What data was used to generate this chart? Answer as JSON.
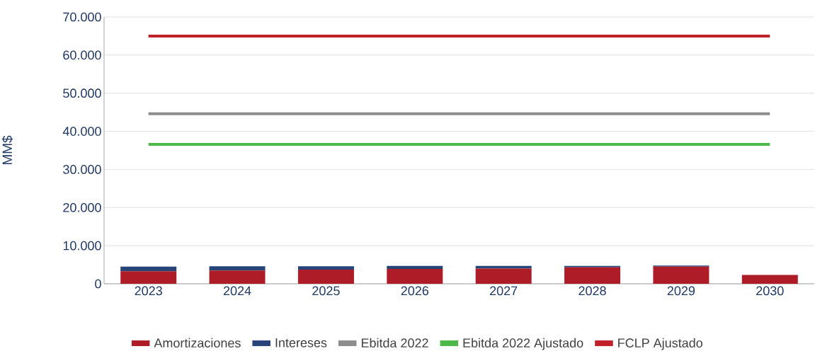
{
  "chart_data": {
    "type": "bar",
    "ylabel": "MM$",
    "categories": [
      "2023",
      "2024",
      "2025",
      "2026",
      "2027",
      "2028",
      "2029",
      "2030"
    ],
    "stacked": true,
    "series": [
      {
        "name": "Amortizaciones",
        "color": "#ae1c28",
        "values": [
          3300,
          3500,
          3700,
          3900,
          4000,
          4300,
          4500,
          2300
        ]
      },
      {
        "name": "Intereses",
        "color": "#264478",
        "values": [
          1200,
          1100,
          900,
          800,
          700,
          400,
          300,
          0
        ]
      },
      {
        "name": "Ebitda 2022",
        "type": "line",
        "color": "#8c8c8c",
        "values": [
          44600,
          44600,
          44600,
          44600,
          44600,
          44600,
          44600,
          44600
        ]
      },
      {
        "name": "Ebitda 2022 Ajustado",
        "type": "line",
        "color": "#4cb848",
        "values": [
          36600,
          36600,
          36600,
          36600,
          36600,
          36600,
          36600,
          36600
        ]
      },
      {
        "name": "FCLP Ajustado",
        "type": "line",
        "color": "#c0202a",
        "values": [
          65000,
          65000,
          65000,
          65000,
          65000,
          65000,
          65000,
          65000
        ]
      }
    ],
    "ylim": [
      0,
      70000
    ],
    "yticks": [
      {
        "value": 0,
        "label": "0"
      },
      {
        "value": 10000,
        "label": "10.000"
      },
      {
        "value": 20000,
        "label": "20.000"
      },
      {
        "value": 30000,
        "label": "30.000"
      },
      {
        "value": 40000,
        "label": "40.000"
      },
      {
        "value": 50000,
        "label": "50.000"
      },
      {
        "value": 60000,
        "label": "60.000"
      },
      {
        "value": 70000,
        "label": "70.000"
      }
    ],
    "grid": "y",
    "legend": "bottom",
    "marker": "none",
    "line_style": "solid"
  }
}
